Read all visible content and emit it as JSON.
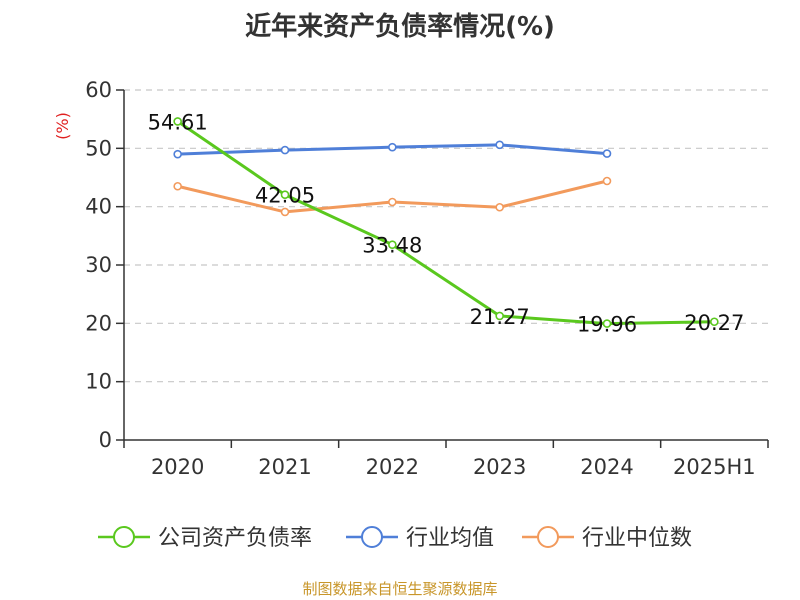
{
  "chart_data": {
    "type": "line",
    "title": "近年来资产负债率情况(%)",
    "ylabel": "(%)",
    "xlabel": "",
    "categories": [
      "2020",
      "2021",
      "2022",
      "2023",
      "2024",
      "2025H1"
    ],
    "ylim": [
      0,
      60
    ],
    "yticks": [
      0,
      10,
      20,
      30,
      40,
      50,
      60
    ],
    "grid": true,
    "legend_position": "bottom",
    "series": [
      {
        "name": "公司资产负债率",
        "color": "#5ac81e",
        "values": [
          54.61,
          42.05,
          33.48,
          21.27,
          19.96,
          20.27
        ],
        "labels": [
          "54.61",
          "42.05",
          "33.48",
          "21.27",
          "19.96",
          "20.27"
        ]
      },
      {
        "name": "行业均值",
        "color": "#4f7fd8",
        "values": [
          49.0,
          49.7,
          50.2,
          50.6,
          49.1,
          null
        ]
      },
      {
        "name": "行业中位数",
        "color": "#f29a5c",
        "values": [
          43.5,
          39.1,
          40.8,
          39.9,
          44.4,
          null
        ]
      }
    ]
  },
  "source_note": "制图数据来自恒生聚源数据库"
}
